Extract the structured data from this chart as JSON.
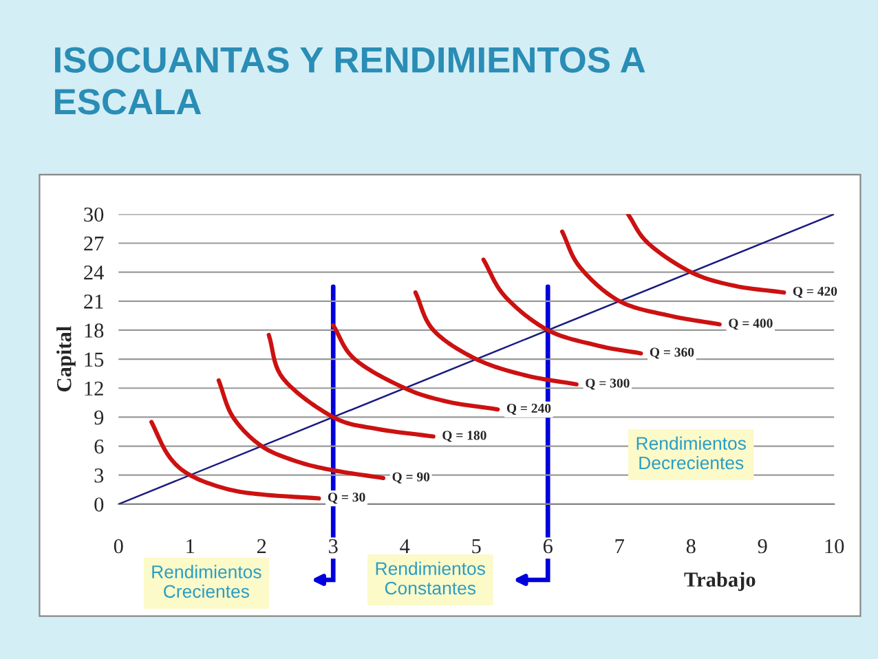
{
  "chart_data": {
    "type": "line",
    "title": "ISOCUANTAS Y RENDIMIENTOS A\nESCALA",
    "xlabel": "Trabajo",
    "ylabel": "Capital",
    "xlim": [
      0,
      10
    ],
    "xticks": [
      0,
      1,
      2,
      3,
      4,
      5,
      6,
      7,
      8,
      9,
      10
    ],
    "ylim": [
      0,
      30
    ],
    "yticks": [
      0,
      3,
      6,
      9,
      12,
      15,
      18,
      21,
      24,
      27,
      30
    ],
    "grid": "y",
    "legend": false,
    "marker": "none",
    "series": [
      {
        "color": "#1a1a80",
        "x": [
          0,
          10
        ],
        "values": [
          0,
          30
        ]
      },
      {
        "name": "Q = 30",
        "color": "#cc1111",
        "x": [
          0.46,
          0.7,
          1.0,
          1.5,
          2.0,
          2.8
        ],
        "values": [
          8.5,
          5,
          3,
          1.6,
          1.0,
          0.6
        ]
      },
      {
        "name": "Q = 90",
        "color": "#cc1111",
        "x": [
          1.4,
          1.6,
          2.0,
          2.5,
          3.0,
          3.7
        ],
        "values": [
          12.8,
          9,
          6,
          4.4,
          3.5,
          2.7
        ]
      },
      {
        "name": "Q = 180",
        "color": "#cc1111",
        "x": [
          2.1,
          2.3,
          3.0,
          3.6,
          4.4
        ],
        "values": [
          17.5,
          13,
          9,
          7.8,
          7.0
        ]
      },
      {
        "name": "Q = 240",
        "color": "#cc1111",
        "x": [
          3.0,
          3.3,
          4.0,
          4.6,
          5.3
        ],
        "values": [
          18.5,
          15,
          12,
          10.6,
          9.8
        ]
      },
      {
        "name": "Q = 300",
        "color": "#cc1111",
        "x": [
          4.15,
          4.4,
          5.0,
          5.7,
          6.4
        ],
        "values": [
          21.9,
          18,
          15,
          13.3,
          12.4
        ]
      },
      {
        "name": "Q = 360",
        "color": "#cc1111",
        "x": [
          5.1,
          5.4,
          6.0,
          6.7,
          7.3
        ],
        "values": [
          25.3,
          21.5,
          18,
          16.4,
          15.6
        ]
      },
      {
        "name": "Q = 400",
        "color": "#cc1111",
        "x": [
          6.2,
          6.45,
          7.0,
          7.7,
          8.4
        ],
        "values": [
          28.2,
          24.5,
          21,
          19.5,
          18.6
        ]
      },
      {
        "name": "Q = 420",
        "color": "#cc1111",
        "x": [
          7.12,
          7.4,
          8.0,
          8.6,
          9.3
        ],
        "values": [
          30,
          27,
          24,
          22.6,
          21.9
        ]
      }
    ],
    "ref_lines": [
      {
        "axis": "x",
        "value": 3,
        "color": "#0000dd"
      },
      {
        "axis": "x",
        "value": 6,
        "color": "#0000dd"
      }
    ],
    "annotations": [
      "Rendimientos\nDecrecientes",
      "Rendimientos\nCrecientes",
      "Rendimientos\nConstantes"
    ]
  }
}
